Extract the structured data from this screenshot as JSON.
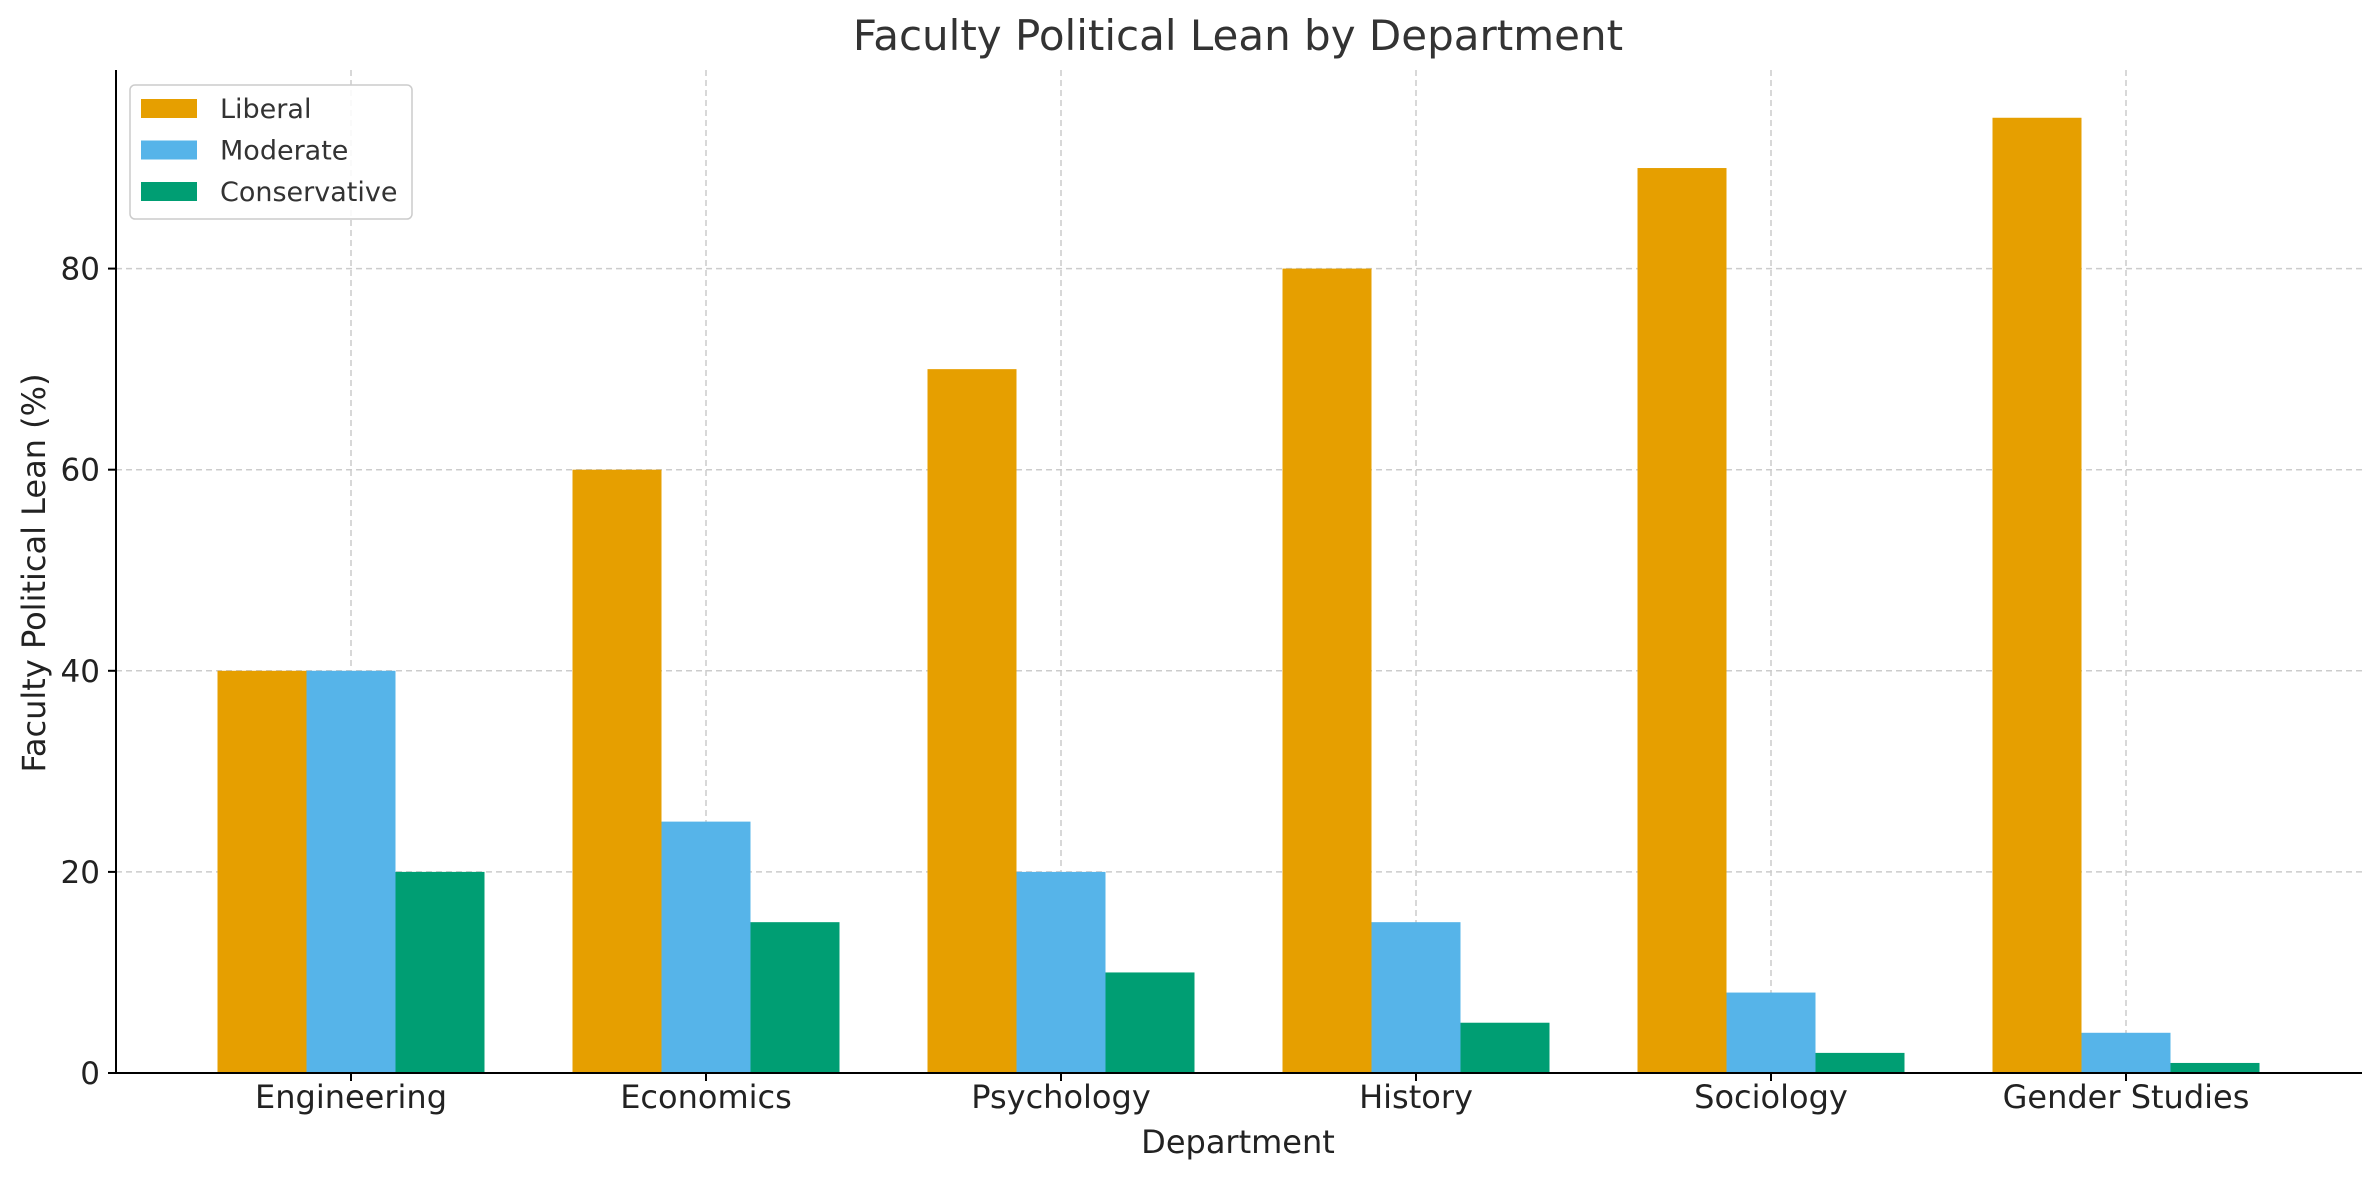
{
  "chart_data": {
    "type": "bar",
    "title": "Faculty Political Lean by Department",
    "xlabel": "Department",
    "ylabel": "Faculty Political Lean (%)",
    "categories": [
      "Engineering",
      "Economics",
      "Psychology",
      "History",
      "Sociology",
      "Gender Studies"
    ],
    "series": [
      {
        "name": "Liberal",
        "color": "#E69F00",
        "values": [
          40,
          60,
          70,
          80,
          90,
          95
        ]
      },
      {
        "name": "Moderate",
        "color": "#56B4E9",
        "values": [
          40,
          25,
          20,
          15,
          8,
          4
        ]
      },
      {
        "name": "Conservative",
        "color": "#009E73",
        "values": [
          20,
          15,
          10,
          5,
          2,
          1
        ]
      }
    ],
    "ylim": [
      0,
      99.75
    ],
    "yticks": [
      0,
      20,
      40,
      60,
      80
    ],
    "ytick_labels": [
      "0",
      "20",
      "40",
      "60",
      "80"
    ],
    "grid": true,
    "legend": "top-left"
  }
}
